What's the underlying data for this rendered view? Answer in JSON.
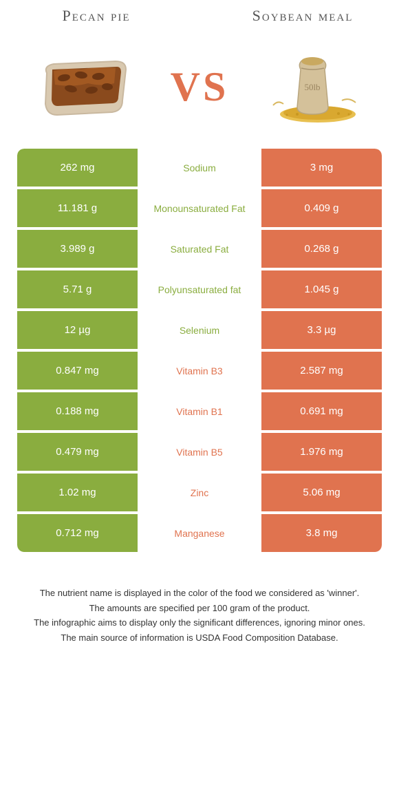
{
  "header": {
    "left_title": "Pecan pie",
    "right_title": "Soybean meal",
    "vs_label": "VS"
  },
  "colors": {
    "left": "#8aad3f",
    "right": "#e0734f",
    "background": "#ffffff"
  },
  "rows": [
    {
      "nutrient": "Sodium",
      "left": "262 mg",
      "right": "3 mg",
      "winner": "left"
    },
    {
      "nutrient": "Monounsaturated Fat",
      "left": "11.181 g",
      "right": "0.409 g",
      "winner": "left"
    },
    {
      "nutrient": "Saturated Fat",
      "left": "3.989 g",
      "right": "0.268 g",
      "winner": "left"
    },
    {
      "nutrient": "Polyunsaturated fat",
      "left": "5.71 g",
      "right": "1.045 g",
      "winner": "left"
    },
    {
      "nutrient": "Selenium",
      "left": "12 µg",
      "right": "3.3 µg",
      "winner": "left"
    },
    {
      "nutrient": "Vitamin B3",
      "left": "0.847 mg",
      "right": "2.587 mg",
      "winner": "right"
    },
    {
      "nutrient": "Vitamin B1",
      "left": "0.188 mg",
      "right": "0.691 mg",
      "winner": "right"
    },
    {
      "nutrient": "Vitamin B5",
      "left": "0.479 mg",
      "right": "1.976 mg",
      "winner": "right"
    },
    {
      "nutrient": "Zinc",
      "left": "1.02 mg",
      "right": "5.06 mg",
      "winner": "right"
    },
    {
      "nutrient": "Manganese",
      "left": "0.712 mg",
      "right": "3.8 mg",
      "winner": "right"
    }
  ],
  "footer": {
    "line1": "The nutrient name is displayed in the color of the food we considered as 'winner'.",
    "line2": "The amounts are specified per 100 gram of the product.",
    "line3": "The infographic aims to display only the significant differences, ignoring minor ones.",
    "line4": "The main source of information is USDA Food Composition Database."
  },
  "left_image": {
    "alt": "pecan-pie-slice"
  },
  "right_image": {
    "alt": "soybean-meal-sack",
    "sack_label": "50lb"
  }
}
